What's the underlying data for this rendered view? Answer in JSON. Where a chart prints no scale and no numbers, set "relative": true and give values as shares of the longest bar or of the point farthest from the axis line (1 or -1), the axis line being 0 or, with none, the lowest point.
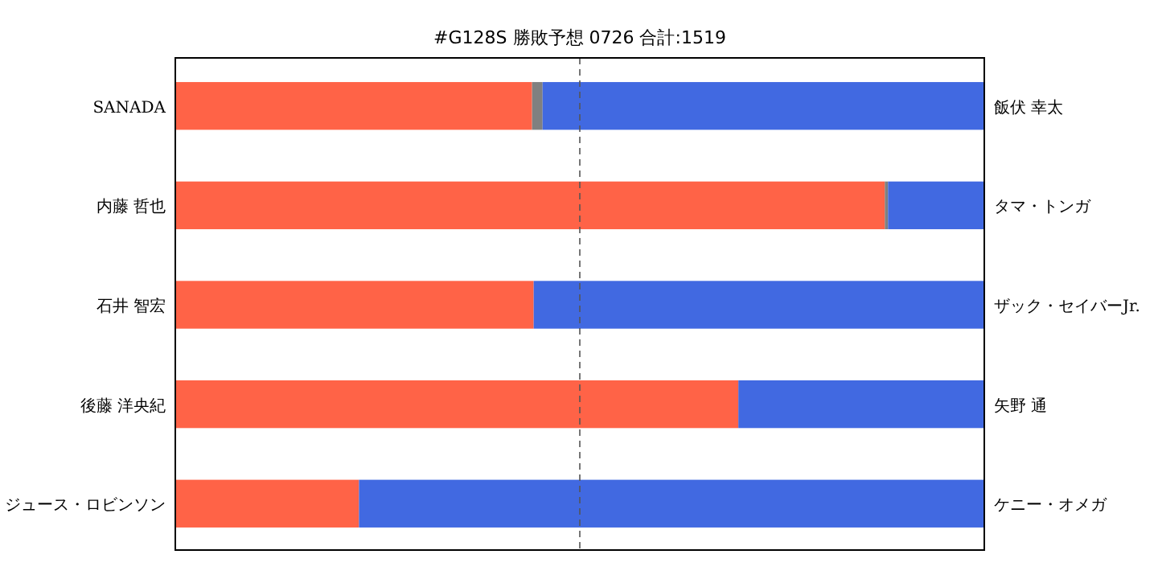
{
  "chart_data": {
    "type": "bar",
    "orientation": "horizontal",
    "stacked": true,
    "relative": true,
    "title": "#G128S 勝敗予想 0726 合計:1519",
    "categories": [
      "SANADA",
      "内藤 哲也",
      "石井 智宏",
      "後藤 洋央紀",
      "ジュース・ロビンソン"
    ],
    "y2_categories": [
      "飯伏 幸太",
      "タマ・トンガ",
      "ザック・セイバーJr.",
      "矢野 通",
      "ケニー・オメガ"
    ],
    "series": [
      {
        "color": "#ff6347",
        "values": [
          0.441,
          0.877,
          0.443,
          0.696,
          0.227
        ]
      },
      {
        "color": "#808080",
        "values": [
          0.013,
          0.004,
          0,
          0,
          0
        ]
      },
      {
        "color": "#4169e1",
        "values": [
          0.546,
          0.119,
          0.557,
          0.304,
          0.773
        ]
      }
    ],
    "ref_lines": [
      {
        "axis": "x",
        "value": 0.5,
        "color": "#555555",
        "line_style": "dashed"
      }
    ],
    "tick_labels": "y"
  }
}
